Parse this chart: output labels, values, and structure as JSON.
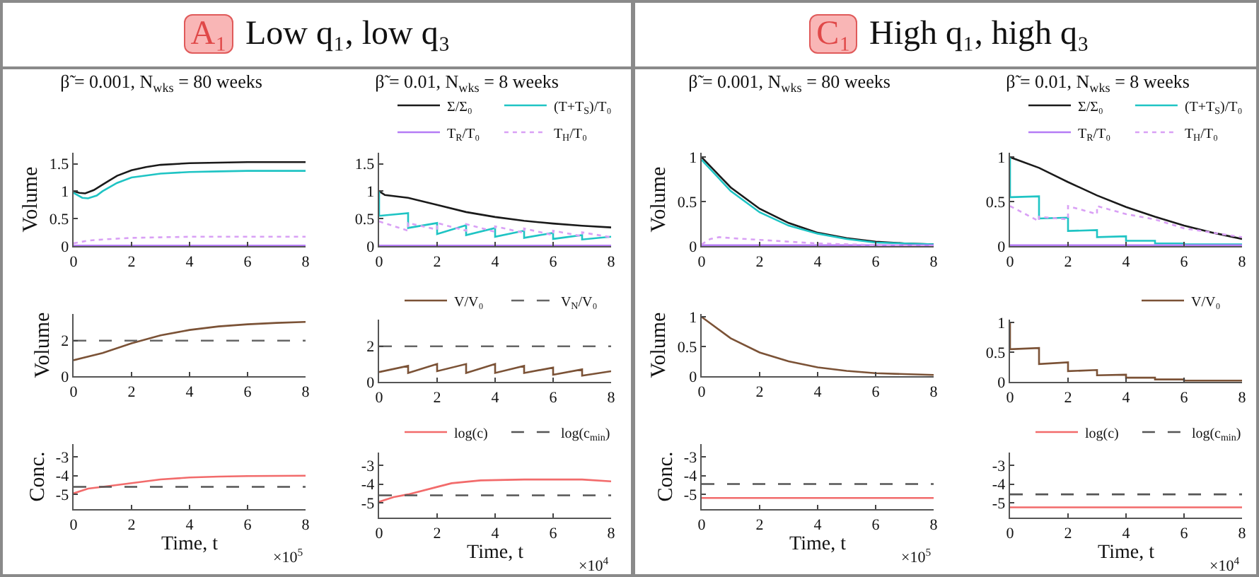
{
  "chart_data": [
    {
      "type": "other",
      "title": "Low q₁, low q₃",
      "annotations": [
        "A₁"
      ]
    },
    {
      "type": "other",
      "title": "High q₁, high q₃",
      "annotations": [
        "C₁"
      ]
    },
    {
      "type": "line",
      "title": "β̃ = 0.001, N$_{wks}$ = 80 weeks",
      "ylabel": "Volume",
      "xlim": [
        0,
        8
      ],
      "xticks": [
        0,
        2,
        4,
        6,
        8
      ],
      "ylim": [
        0,
        1.7
      ],
      "yticks": [
        0,
        0.5,
        1,
        1.5
      ],
      "series": [
        {
          "color": "#1a1a1a",
          "x": [
            0,
            0.2,
            0.4,
            0.7,
            1,
            1.5,
            2,
            2.5,
            3,
            4,
            5,
            6,
            8
          ],
          "values": [
            1.0,
            0.97,
            0.96,
            1.02,
            1.12,
            1.28,
            1.38,
            1.44,
            1.48,
            1.51,
            1.52,
            1.53,
            1.53
          ]
        },
        {
          "color": "#1fc4c4",
          "x": [
            0,
            0.3,
            0.5,
            0.8,
            1,
            1.5,
            2,
            3,
            4,
            5,
            6,
            8
          ],
          "values": [
            0.97,
            0.88,
            0.87,
            0.92,
            1.0,
            1.15,
            1.25,
            1.32,
            1.35,
            1.36,
            1.37,
            1.37
          ]
        },
        {
          "color": "#b57cf5",
          "x": [
            0,
            8
          ],
          "values": [
            0.01,
            0.01
          ]
        },
        {
          "color": "#d9a0f5",
          "line_style": "dotted",
          "x": [
            0,
            0.5,
            1,
            2,
            3,
            4,
            8
          ],
          "values": [
            0.05,
            0.1,
            0.12,
            0.15,
            0.16,
            0.17,
            0.17
          ]
        }
      ]
    },
    {
      "type": "line",
      "title": "β̃ = 0.01, N$_{wks}$ = 8 weeks",
      "legend": "top right",
      "xlim": [
        0,
        8
      ],
      "xticks": [
        0,
        2,
        4,
        6,
        8
      ],
      "ylim": [
        0,
        1.7
      ],
      "yticks": [
        0,
        0.5,
        1,
        1.5
      ],
      "series": [
        {
          "name": "Σ/Σ₀",
          "color": "#1a1a1a",
          "x": [
            0,
            0.2,
            1,
            2,
            3,
            4,
            5,
            6,
            7,
            8
          ],
          "values": [
            1.0,
            0.93,
            0.88,
            0.75,
            0.62,
            0.53,
            0.46,
            0.41,
            0.37,
            0.34
          ]
        },
        {
          "name": "(T+T$_{S}$)/T₀",
          "color": "#1fc4c4",
          "x": [
            0,
            0,
            1,
            1,
            2,
            2,
            3,
            3,
            4,
            4,
            5,
            5,
            6,
            6,
            7,
            7,
            8
          ],
          "values": [
            1,
            0.55,
            0.6,
            0.33,
            0.42,
            0.22,
            0.38,
            0.2,
            0.33,
            0.17,
            0.28,
            0.15,
            0.24,
            0.13,
            0.2,
            0.12,
            0.17
          ]
        },
        {
          "name": "T$_{R}$/T₀",
          "color": "#b57cf5",
          "x": [
            0,
            8
          ],
          "values": [
            0.01,
            0.01
          ]
        },
        {
          "name": "T$_{H}$/T₀",
          "color": "#d9a0f5",
          "line_style": "dotted",
          "x": [
            0,
            1,
            1,
            2,
            2,
            3,
            3,
            4,
            4,
            5,
            5,
            6,
            6,
            7,
            7,
            8
          ],
          "values": [
            0.45,
            0.28,
            0.42,
            0.3,
            0.42,
            0.28,
            0.4,
            0.26,
            0.36,
            0.24,
            0.32,
            0.2,
            0.28,
            0.18,
            0.25,
            0.16
          ]
        }
      ]
    },
    {
      "type": "line",
      "title": "β̃ = 0.001, N$_{wks}$ = 80 weeks",
      "ylabel": "Volume",
      "xlim": [
        0,
        8
      ],
      "xticks": [
        0,
        2,
        4,
        6,
        8
      ],
      "ylim": [
        0,
        1.05
      ],
      "yticks": [
        0,
        0.5,
        1
      ],
      "series": [
        {
          "color": "#1a1a1a",
          "x": [
            0,
            1,
            2,
            3,
            4,
            5,
            6,
            7,
            8
          ],
          "values": [
            1.0,
            0.66,
            0.42,
            0.26,
            0.15,
            0.09,
            0.05,
            0.03,
            0.02
          ]
        },
        {
          "color": "#1fc4c4",
          "x": [
            0,
            1,
            2,
            3,
            4,
            5,
            6,
            8
          ],
          "values": [
            0.97,
            0.62,
            0.38,
            0.23,
            0.14,
            0.08,
            0.04,
            0.02
          ]
        },
        {
          "color": "#b57cf5",
          "x": [
            0,
            8
          ],
          "values": [
            0.01,
            0.01
          ]
        },
        {
          "color": "#d9a0f5",
          "line_style": "dotted",
          "x": [
            0,
            0.3,
            0.6,
            1,
            2,
            3,
            4,
            6,
            8
          ],
          "values": [
            0.02,
            0.08,
            0.1,
            0.09,
            0.07,
            0.05,
            0.03,
            0.01,
            0.0
          ]
        }
      ]
    },
    {
      "type": "line",
      "title": "β̃ = 0.01, N$_{wks}$ = 8 weeks",
      "legend": "top right",
      "xlim": [
        0,
        8
      ],
      "xticks": [
        0,
        2,
        4,
        6,
        8
      ],
      "ylim": [
        0,
        1.05
      ],
      "yticks": [
        0,
        0.5,
        1
      ],
      "series": [
        {
          "name": "Σ/Σ₀",
          "color": "#1a1a1a",
          "x": [
            0,
            1,
            2,
            3,
            4,
            5,
            6,
            7,
            8
          ],
          "values": [
            1.0,
            0.88,
            0.72,
            0.57,
            0.44,
            0.33,
            0.23,
            0.15,
            0.08
          ]
        },
        {
          "name": "(T+T$_{S}$)/T₀",
          "color": "#1fc4c4",
          "x": [
            0,
            0,
            1,
            1,
            2,
            2,
            3,
            3,
            4,
            4,
            5,
            5,
            6,
            6,
            8
          ],
          "values": [
            1,
            0.55,
            0.56,
            0.31,
            0.32,
            0.17,
            0.18,
            0.1,
            0.11,
            0.06,
            0.06,
            0.03,
            0.03,
            0.02,
            0.02
          ]
        },
        {
          "name": "T$_{R}$/T₀",
          "color": "#b57cf5",
          "x": [
            0,
            8
          ],
          "values": [
            0.01,
            0.01
          ]
        },
        {
          "name": "T$_{H}$/T₀",
          "color": "#d9a0f5",
          "line_style": "dotted",
          "x": [
            0,
            1,
            1,
            2,
            2,
            3,
            3,
            4,
            5,
            6,
            7,
            8
          ],
          "values": [
            0.45,
            0.28,
            0.33,
            0.3,
            0.45,
            0.36,
            0.45,
            0.36,
            0.3,
            0.2,
            0.15,
            0.1
          ]
        }
      ]
    },
    {
      "type": "line",
      "ylabel": "Volume",
      "xlim": [
        0,
        8
      ],
      "xticks": [
        0,
        2,
        4,
        6,
        8
      ],
      "ylim": [
        0,
        3.5
      ],
      "yticks": [
        0,
        2
      ],
      "series": [
        {
          "color": "#7b5236",
          "x": [
            0,
            1,
            2,
            3,
            4,
            5,
            6,
            7,
            8
          ],
          "values": [
            0.9,
            1.3,
            1.85,
            2.3,
            2.6,
            2.8,
            2.92,
            3.0,
            3.05
          ]
        },
        {
          "color": "#666666",
          "line_style": "dashed",
          "x": [
            0,
            8
          ],
          "values": [
            2,
            2
          ]
        }
      ]
    },
    {
      "type": "line",
      "legend": "top right",
      "xlim": [
        0,
        8
      ],
      "xticks": [
        0,
        2,
        4,
        6,
        8
      ],
      "ylim": [
        0,
        3.5
      ],
      "yticks": [
        0,
        2
      ],
      "series": [
        {
          "name": "V/V₀",
          "color": "#7b5236",
          "x": [
            0,
            1,
            1,
            2,
            2,
            3,
            3,
            4,
            4,
            5,
            5,
            6,
            6,
            7,
            7,
            8
          ],
          "values": [
            0.55,
            0.9,
            0.5,
            1.0,
            0.6,
            1.0,
            0.5,
            1.0,
            0.5,
            0.9,
            0.5,
            0.8,
            0.4,
            0.7,
            0.35,
            0.6
          ]
        },
        {
          "name": "V$_{N}$/V₀",
          "color": "#666666",
          "line_style": "dashed",
          "x": [
            0,
            8
          ],
          "values": [
            2,
            2
          ]
        }
      ]
    },
    {
      "type": "line",
      "ylabel": "Volume",
      "xlim": [
        0,
        8
      ],
      "xticks": [
        0,
        2,
        4,
        6,
        8
      ],
      "ylim": [
        0,
        1.05
      ],
      "yticks": [
        0,
        0.5,
        1
      ],
      "series": [
        {
          "color": "#7b5236",
          "x": [
            0,
            1,
            2,
            3,
            4,
            5,
            6,
            8
          ],
          "values": [
            1.0,
            0.64,
            0.4,
            0.25,
            0.15,
            0.09,
            0.05,
            0.02
          ]
        }
      ]
    },
    {
      "type": "line",
      "legend": "top right",
      "xlim": [
        0,
        8
      ],
      "xticks": [
        0,
        2,
        4,
        6,
        8
      ],
      "ylim": [
        0,
        1.05
      ],
      "yticks": [
        0,
        0.5,
        1
      ],
      "series": [
        {
          "name": "V/V₀",
          "color": "#7b5236",
          "x": [
            0,
            0,
            1,
            1,
            2,
            2,
            3,
            3,
            4,
            4,
            5,
            5,
            6,
            6,
            8
          ],
          "values": [
            1,
            0.55,
            0.57,
            0.3,
            0.33,
            0.18,
            0.2,
            0.11,
            0.12,
            0.07,
            0.07,
            0.04,
            0.04,
            0.02,
            0.02
          ]
        }
      ]
    },
    {
      "type": "line",
      "ylabel": "Conc.",
      "xlabel": "Time, t",
      "annotations": [
        "×10$^{5}$"
      ],
      "xlim": [
        0,
        8
      ],
      "xticks": [
        0,
        2,
        4,
        6,
        8
      ],
      "ylim": [
        -5.8,
        -2.3
      ],
      "yticks": [
        -5,
        -4,
        -3
      ],
      "series": [
        {
          "color": "#f26b6b",
          "x": [
            0,
            0.5,
            1,
            2,
            3,
            4,
            5,
            6,
            8
          ],
          "values": [
            -4.95,
            -4.7,
            -4.6,
            -4.4,
            -4.2,
            -4.1,
            -4.05,
            -4.02,
            -4.0
          ]
        },
        {
          "color": "#555555",
          "line_style": "dashed",
          "x": [
            0,
            8
          ],
          "values": [
            -4.6,
            -4.6
          ]
        }
      ]
    },
    {
      "type": "line",
      "xlabel": "Time, t",
      "annotations": [
        "×10$^{4}$"
      ],
      "legend": "top right",
      "xlim": [
        0,
        8
      ],
      "xticks": [
        0,
        2,
        4,
        6,
        8
      ],
      "ylim": [
        -5.8,
        -2.3
      ],
      "yticks": [
        -5,
        -4,
        -3
      ],
      "series": [
        {
          "name": "log(c)",
          "color": "#f26b6b",
          "x": [
            0,
            0.5,
            1,
            2,
            2.5,
            3.5,
            5,
            6,
            7,
            8
          ],
          "values": [
            -4.95,
            -4.7,
            -4.55,
            -4.15,
            -3.95,
            -3.8,
            -3.75,
            -3.75,
            -3.75,
            -3.85
          ]
        },
        {
          "name": "log(c$_{min}$)",
          "color": "#555555",
          "line_style": "dashed",
          "x": [
            0,
            8
          ],
          "values": [
            -4.6,
            -4.6
          ]
        }
      ]
    },
    {
      "type": "line",
      "ylabel": "Conc.",
      "xlabel": "Time, t",
      "annotations": [
        "×10$^{5}$"
      ],
      "xlim": [
        0,
        8
      ],
      "xticks": [
        0,
        2,
        4,
        6,
        8
      ],
      "ylim": [
        -5.8,
        -2.3
      ],
      "yticks": [
        -5,
        -4,
        -3
      ],
      "series": [
        {
          "color": "#f26b6b",
          "x": [
            0,
            8
          ],
          "values": [
            -5.2,
            -5.2
          ]
        },
        {
          "color": "#555555",
          "line_style": "dashed",
          "x": [
            0,
            8
          ],
          "values": [
            -4.45,
            -4.45
          ]
        }
      ]
    },
    {
      "type": "line",
      "xlabel": "Time, t",
      "annotations": [
        "×10$^{4}$"
      ],
      "legend": "top right",
      "xlim": [
        0,
        8
      ],
      "xticks": [
        0,
        2,
        4,
        6,
        8
      ],
      "ylim": [
        -5.8,
        -2.3
      ],
      "yticks": [
        -5,
        -4,
        -3
      ],
      "series": [
        {
          "name": "log(c)",
          "color": "#f26b6b",
          "x": [
            0,
            8
          ],
          "values": [
            -5.25,
            -5.25
          ]
        },
        {
          "name": "log(c$_{min}$)",
          "color": "#555555",
          "line_style": "dashed",
          "x": [
            0,
            8
          ],
          "values": [
            -4.55,
            -4.55
          ]
        }
      ]
    }
  ]
}
